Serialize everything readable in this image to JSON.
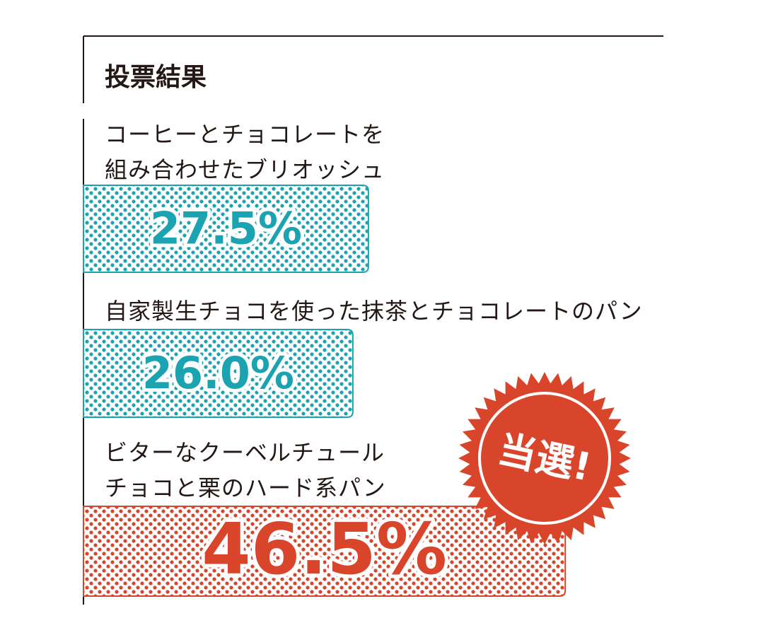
{
  "chart_data": {
    "type": "bar",
    "orientation": "horizontal",
    "title": "投票結果",
    "categories": [
      "コーヒーとチョコレートを\n組み合わせたブリオッシュ",
      "自家製生チョコを使った抹茶とチョコレートのパン",
      "ビターなクーベルチュール\nチョコと栗のハード系パン"
    ],
    "values": [
      27.5,
      26.0,
      46.5
    ],
    "value_labels": [
      "27.5%",
      "26.0%",
      "46.5%"
    ],
    "colors": [
      "#1ba3b1",
      "#1ba3b1",
      "#d8452b"
    ],
    "badge": "当選!"
  }
}
